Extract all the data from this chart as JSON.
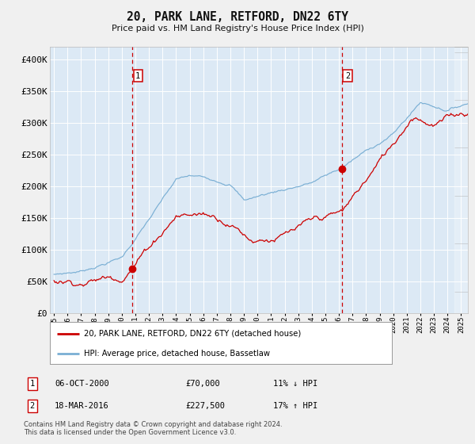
{
  "title": "20, PARK LANE, RETFORD, DN22 6TY",
  "subtitle": "Price paid vs. HM Land Registry's House Price Index (HPI)",
  "legend_line1": "20, PARK LANE, RETFORD, DN22 6TY (detached house)",
  "legend_line2": "HPI: Average price, detached house, Bassetlaw",
  "footer": "Contains HM Land Registry data © Crown copyright and database right 2024.\nThis data is licensed under the Open Government Licence v3.0.",
  "red_line_color": "#cc0000",
  "blue_line_color": "#7aafd4",
  "bg_color": "#dce9f5",
  "grid_color": "#ffffff",
  "annotation_vline_color": "#cc0000",
  "annotation_box_color": "#cc0000",
  "sale1_x": 2000.76,
  "sale1_y": 70000,
  "sale2_x": 2016.21,
  "sale2_y": 227500,
  "xmin": 1994.7,
  "xmax": 2025.5,
  "ymin": 0,
  "ymax": 420000,
  "yticks": [
    0,
    50000,
    100000,
    150000,
    200000,
    250000,
    300000,
    350000,
    400000
  ],
  "ytick_labels": [
    "£0",
    "£50K",
    "£100K",
    "£150K",
    "£200K",
    "£250K",
    "£300K",
    "£350K",
    "£400K"
  ],
  "annotation1_date": "06-OCT-2000",
  "annotation1_price": "£70,000",
  "annotation1_hpi": "11% ↓ HPI",
  "annotation2_date": "18-MAR-2016",
  "annotation2_price": "£227,500",
  "annotation2_hpi": "17% ↑ HPI"
}
